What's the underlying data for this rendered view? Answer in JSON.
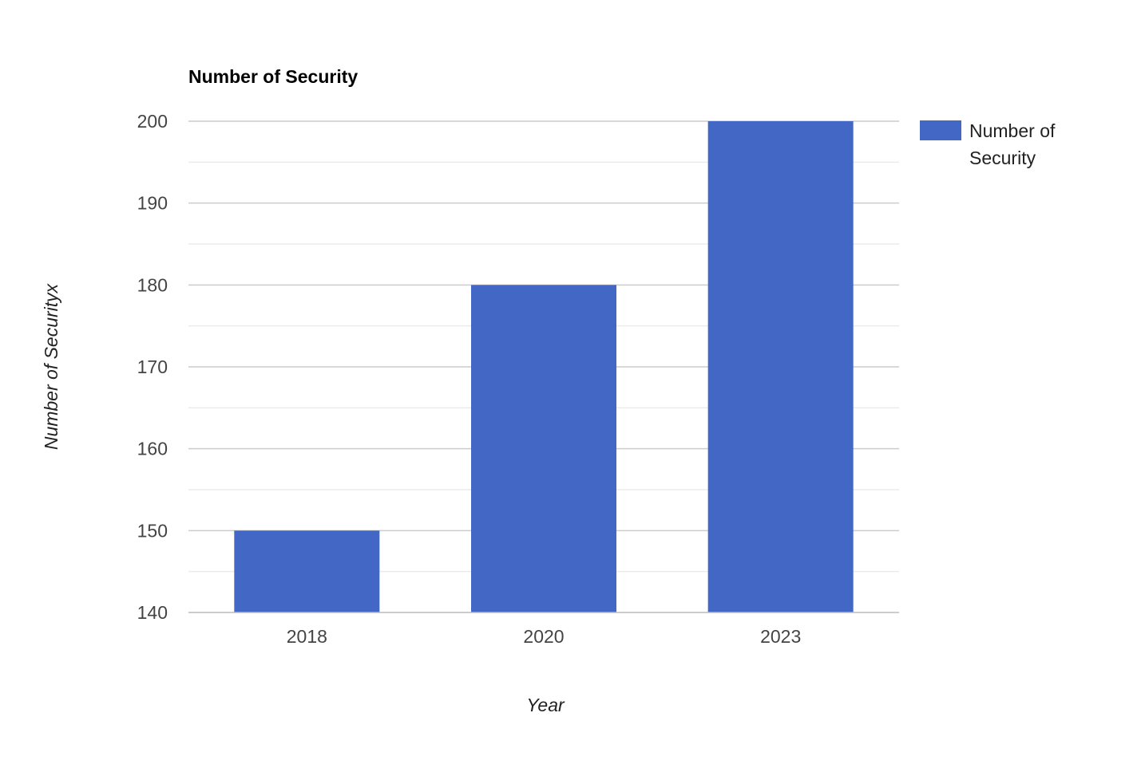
{
  "chart_data": {
    "type": "bar",
    "title": "Number of Security",
    "xlabel": "Year",
    "ylabel": "Number of Securityx",
    "categories": [
      "2018",
      "2020",
      "2023"
    ],
    "series": [
      {
        "name": "Number of Security",
        "values": [
          150,
          180,
          200
        ],
        "color": "#4267c5"
      }
    ],
    "ylim": [
      140,
      200
    ],
    "yticks": [
      "140",
      "150",
      "160",
      "170",
      "180",
      "190",
      "200"
    ],
    "grid": true,
    "legend": "right",
    "legend_lines": [
      "Number of",
      "Security"
    ]
  }
}
